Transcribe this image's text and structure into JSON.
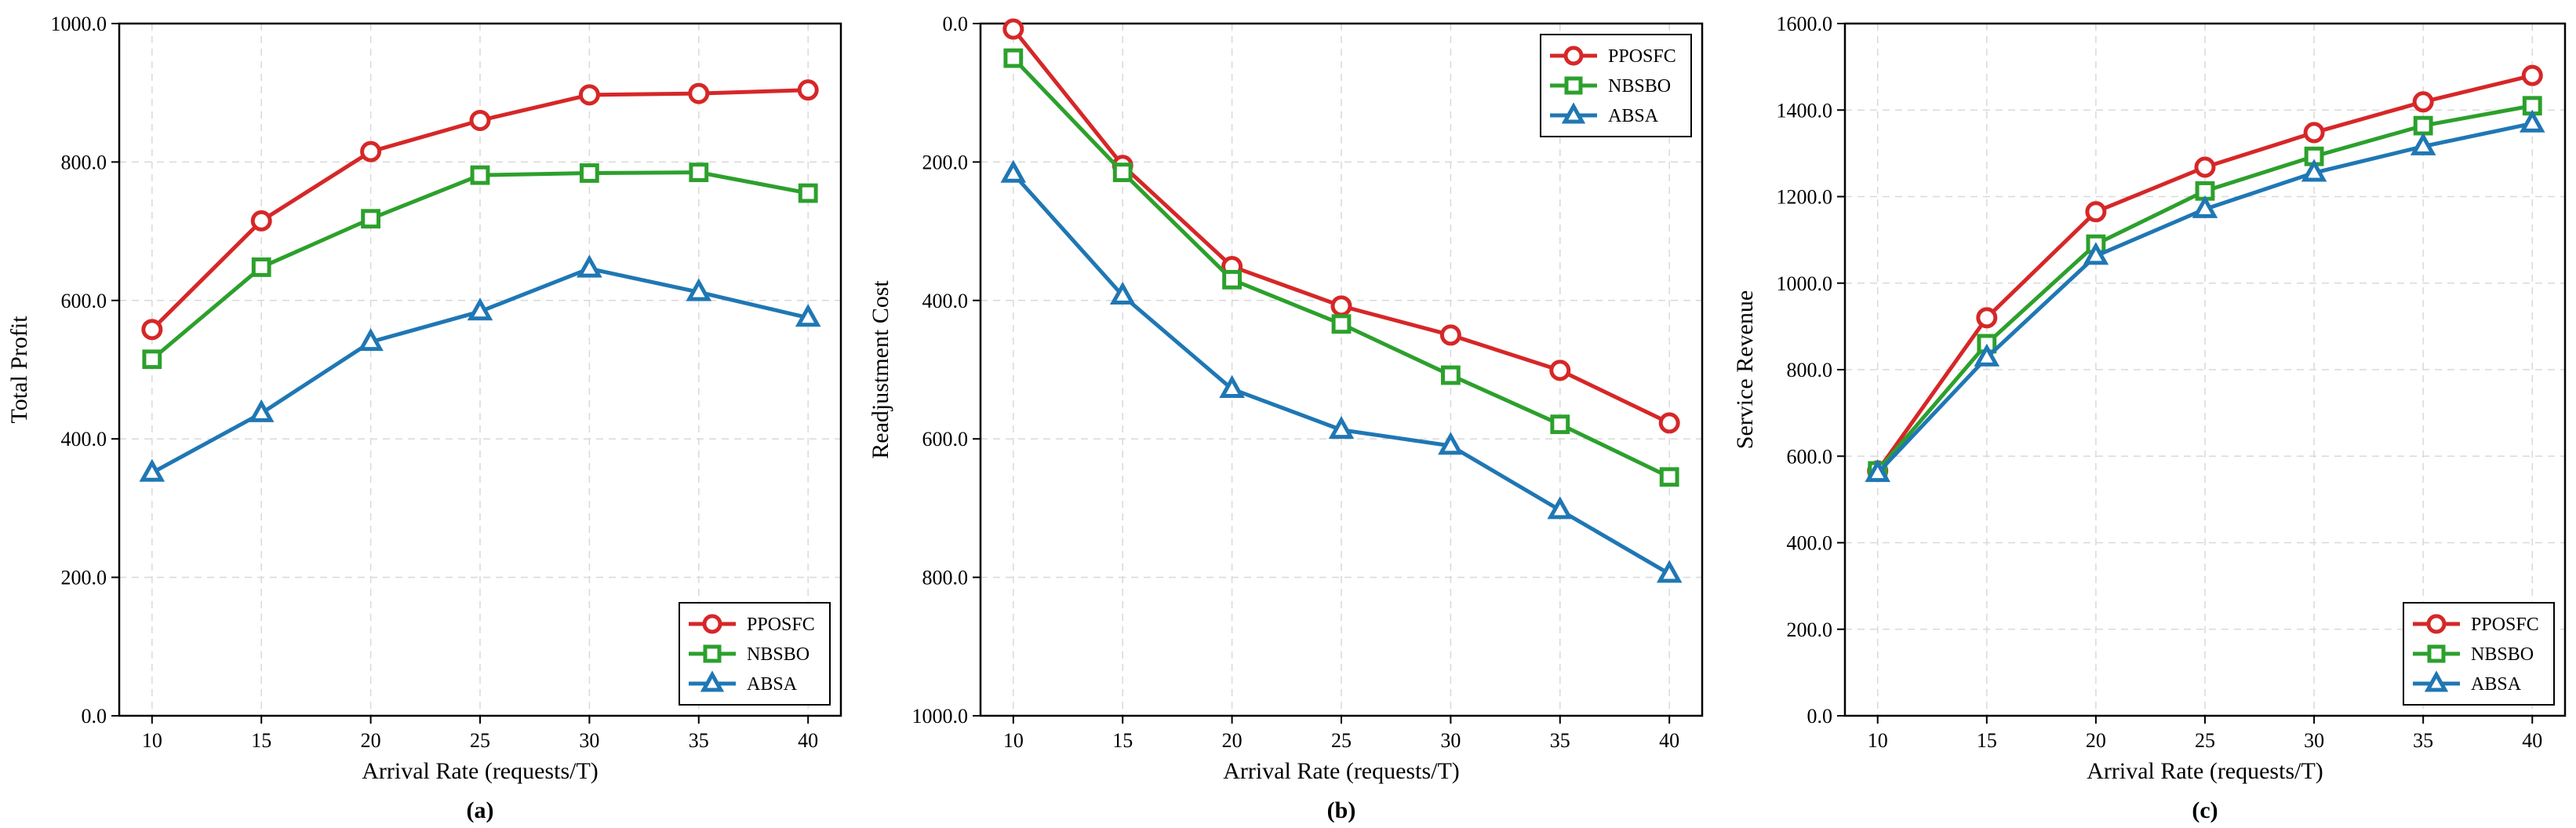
{
  "chart_data": [
    {
      "type": "line",
      "panel": "a",
      "caption": "(a)",
      "xlabel": "Arrival Rate (requests/T)",
      "ylabel": "Total Profit",
      "x": [
        10,
        15,
        20,
        25,
        30,
        35,
        40
      ],
      "xticks": [
        "10",
        "15",
        "20",
        "25",
        "30",
        "35",
        "40"
      ],
      "ylim": [
        0,
        1000
      ],
      "yinverted": false,
      "yticks": [
        0,
        200,
        400,
        600,
        800,
        1000
      ],
      "ytick_labels": [
        "0.0",
        "200.0",
        "400.0",
        "600.0",
        "800.0",
        "1000.0"
      ],
      "grid": true,
      "legend_position": "bottom-right",
      "series": [
        {
          "name": "PPOSFC",
          "color": "#d62728",
          "marker": "circle",
          "values": [
            558,
            715,
            815,
            860,
            897,
            899,
            904
          ]
        },
        {
          "name": "NBSBO",
          "color": "#2ca02c",
          "marker": "square",
          "values": [
            515,
            648,
            718,
            781,
            784,
            785,
            755
          ]
        },
        {
          "name": "ABSA",
          "color": "#1f77b4",
          "marker": "triangle",
          "values": [
            351,
            437,
            540,
            584,
            646,
            612,
            575
          ]
        }
      ]
    },
    {
      "type": "line",
      "panel": "b",
      "caption": "(b)",
      "xlabel": "Arrival Rate (requests/T)",
      "ylabel": "Readjustment Cost",
      "x": [
        10,
        15,
        20,
        25,
        30,
        35,
        40
      ],
      "xticks": [
        "10",
        "15",
        "20",
        "25",
        "30",
        "35",
        "40"
      ],
      "ylim": [
        0,
        1000
      ],
      "yinverted": true,
      "yticks": [
        0,
        200,
        400,
        600,
        800,
        1000
      ],
      "ytick_labels": [
        "0.0",
        "200.0",
        "400.0",
        "600.0",
        "800.0",
        "1000.0"
      ],
      "grid": true,
      "legend_position": "top-right",
      "series": [
        {
          "name": "PPOSFC",
          "color": "#d62728",
          "marker": "circle",
          "values": [
            8,
            205,
            351,
            408,
            450,
            501,
            577
          ]
        },
        {
          "name": "NBSBO",
          "color": "#2ca02c",
          "marker": "square",
          "values": [
            50,
            215,
            370,
            434,
            508,
            579,
            655
          ]
        },
        {
          "name": "ABSA",
          "color": "#1f77b4",
          "marker": "triangle",
          "values": [
            217,
            393,
            528,
            587,
            610,
            703,
            795
          ]
        }
      ]
    },
    {
      "type": "line",
      "panel": "c",
      "caption": "(c)",
      "xlabel": "Arrival Rate (requests/T)",
      "ylabel": "Service Revenue",
      "x": [
        10,
        15,
        20,
        25,
        30,
        35,
        40
      ],
      "xticks": [
        "10",
        "15",
        "20",
        "25",
        "30",
        "35",
        "40"
      ],
      "ylim": [
        0,
        1600
      ],
      "yinverted": false,
      "yticks": [
        0,
        200,
        400,
        600,
        800,
        1000,
        1200,
        1400,
        1600
      ],
      "ytick_labels": [
        "0.0",
        "200.0",
        "400.0",
        "600.0",
        "800.0",
        "1000.0",
        "1200.0",
        "1400.0",
        "1600.0"
      ],
      "grid": true,
      "legend_position": "bottom-right",
      "series": [
        {
          "name": "PPOSFC",
          "color": "#d62728",
          "marker": "circle",
          "values": [
            566,
            920,
            1165,
            1268,
            1348,
            1419,
            1480
          ]
        },
        {
          "name": "NBSBO",
          "color": "#2ca02c",
          "marker": "square",
          "values": [
            566,
            860,
            1090,
            1213,
            1293,
            1364,
            1410
          ]
        },
        {
          "name": "ABSA",
          "color": "#1f77b4",
          "marker": "triangle",
          "values": [
            561,
            828,
            1063,
            1171,
            1255,
            1316,
            1369
          ]
        }
      ]
    }
  ]
}
